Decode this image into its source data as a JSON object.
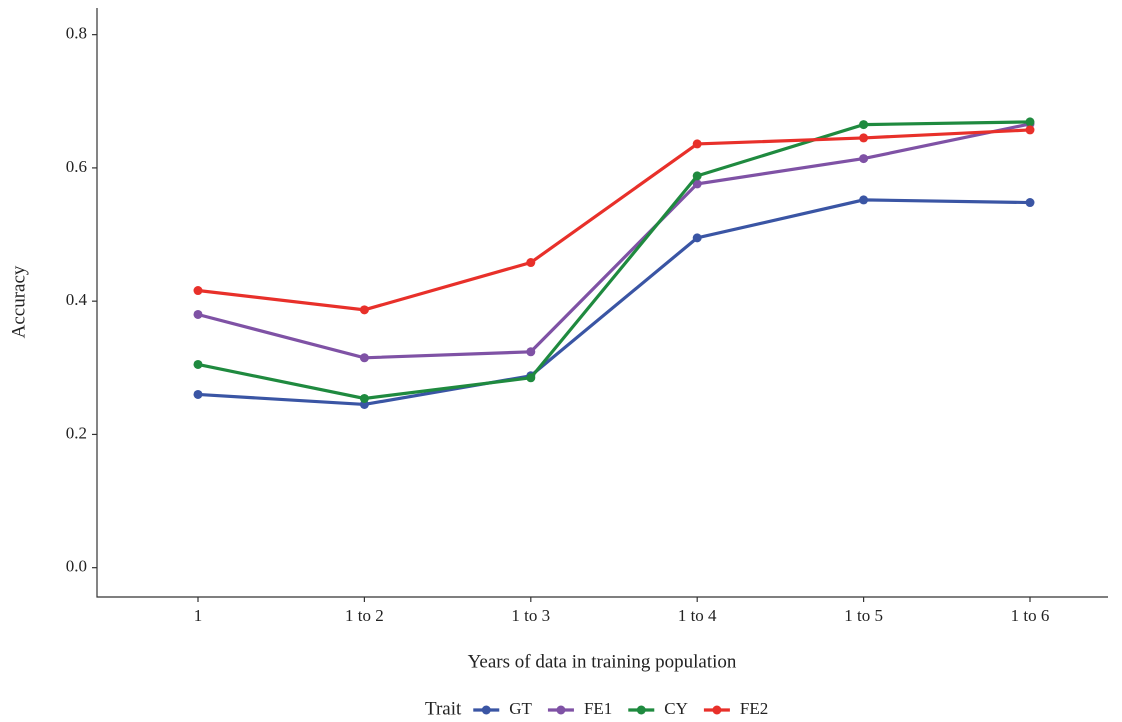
{
  "chart_data": {
    "type": "line",
    "x_label": "Years of data in training population",
    "y_label": "Accuracy",
    "legend_title": "Trait",
    "categories": [
      "1",
      "1 to 2",
      "1 to 3",
      "1 to 4",
      "1 to 5",
      "1 to 6"
    ],
    "series": [
      {
        "name": "GT",
        "color": "#3a55a4",
        "values": [
          0.26,
          0.245,
          0.288,
          0.495,
          0.552,
          0.548
        ]
      },
      {
        "name": "FE1",
        "color": "#7f52a5",
        "values": [
          0.38,
          0.315,
          0.324,
          0.576,
          0.614,
          0.666
        ]
      },
      {
        "name": "CY",
        "color": "#1f8a3f",
        "values": [
          0.305,
          0.254,
          0.285,
          0.588,
          0.665,
          0.669
        ]
      },
      {
        "name": "FE2",
        "color": "#e8302a",
        "values": [
          0.416,
          0.387,
          0.458,
          0.636,
          0.645,
          0.657
        ]
      }
    ],
    "ylim": [
      -0.044,
      0.84
    ],
    "yticks": [
      {
        "value": 0,
        "label": "0.0"
      },
      0.2,
      0.4,
      0.6,
      0.8
    ],
    "legend_position": "bottom"
  }
}
